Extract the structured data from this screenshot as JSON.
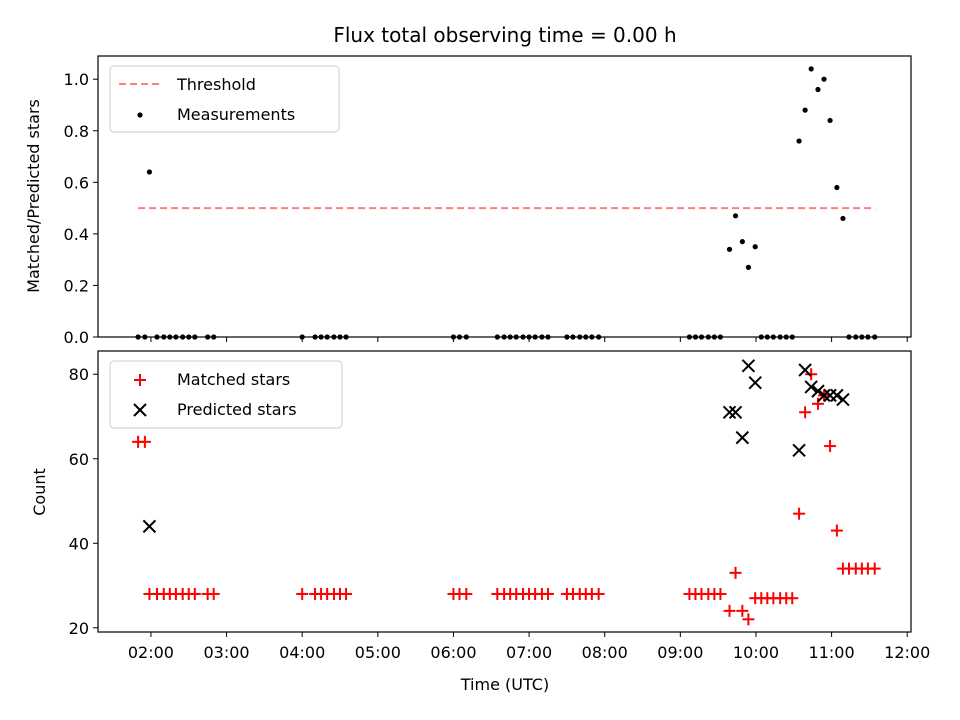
{
  "chart_data": {
    "title": "Flux total observing time = 0.00 h",
    "xlabel": "Time (UTC)",
    "x_unit": "hours UTC",
    "xlim": [
      1.3,
      12.05
    ],
    "xticks": [
      {
        "v": 2,
        "label": "02:00"
      },
      {
        "v": 3,
        "label": "03:00"
      },
      {
        "v": 4,
        "label": "04:00"
      },
      {
        "v": 5,
        "label": "05:00"
      },
      {
        "v": 6,
        "label": "06:00"
      },
      {
        "v": 7,
        "label": "07:00"
      },
      {
        "v": 8,
        "label": "08:00"
      },
      {
        "v": 9,
        "label": "09:00"
      },
      {
        "v": 10,
        "label": "10:00"
      },
      {
        "v": 11,
        "label": "11:00"
      },
      {
        "v": 12,
        "label": "12:00"
      }
    ],
    "top": {
      "type": "scatter",
      "ylabel": "Matched/Predicted stars",
      "ylim": [
        0,
        1.09
      ],
      "yticks": [
        {
          "v": 0,
          "label": "0.0"
        },
        {
          "v": 0.2,
          "label": "0.2"
        },
        {
          "v": 0.4,
          "label": "0.4"
        },
        {
          "v": 0.6,
          "label": "0.6"
        },
        {
          "v": 0.8,
          "label": "0.8"
        },
        {
          "v": 1.0,
          "label": "1.0"
        }
      ],
      "threshold": {
        "name": "Threshold",
        "y": 0.5,
        "x_start": 1.83,
        "x_end": 11.58,
        "color": "#ff7f7f"
      },
      "measurements": {
        "name": "Measurements",
        "color": "#000000",
        "points": [
          [
            1.83,
            0
          ],
          [
            1.92,
            0
          ],
          [
            1.98,
            0.64
          ],
          [
            2.08,
            0
          ],
          [
            2.17,
            0
          ],
          [
            2.25,
            0
          ],
          [
            2.33,
            0
          ],
          [
            2.42,
            0
          ],
          [
            2.5,
            0
          ],
          [
            2.58,
            0
          ],
          [
            2.75,
            0
          ],
          [
            2.83,
            0
          ],
          [
            4.0,
            0
          ],
          [
            4.17,
            0
          ],
          [
            4.25,
            0
          ],
          [
            4.33,
            0
          ],
          [
            4.42,
            0
          ],
          [
            4.5,
            0
          ],
          [
            4.58,
            0
          ],
          [
            6.0,
            0
          ],
          [
            6.08,
            0
          ],
          [
            6.17,
            0
          ],
          [
            6.58,
            0
          ],
          [
            6.67,
            0
          ],
          [
            6.75,
            0
          ],
          [
            6.83,
            0
          ],
          [
            6.92,
            0
          ],
          [
            7.0,
            0
          ],
          [
            7.08,
            0
          ],
          [
            7.17,
            0
          ],
          [
            7.25,
            0
          ],
          [
            7.5,
            0
          ],
          [
            7.58,
            0
          ],
          [
            7.67,
            0
          ],
          [
            7.75,
            0
          ],
          [
            7.83,
            0
          ],
          [
            7.92,
            0
          ],
          [
            9.12,
            0
          ],
          [
            9.2,
            0
          ],
          [
            9.28,
            0
          ],
          [
            9.37,
            0
          ],
          [
            9.45,
            0
          ],
          [
            9.53,
            0
          ],
          [
            9.65,
            0.34
          ],
          [
            9.73,
            0.47
          ],
          [
            9.82,
            0.37
          ],
          [
            9.9,
            0.27
          ],
          [
            9.99,
            0.35
          ],
          [
            10.07,
            0
          ],
          [
            10.15,
            0
          ],
          [
            10.23,
            0
          ],
          [
            10.32,
            0
          ],
          [
            10.4,
            0
          ],
          [
            10.48,
            0
          ],
          [
            10.57,
            0.76
          ],
          [
            10.65,
            0.88
          ],
          [
            10.73,
            1.04
          ],
          [
            10.82,
            0.96
          ],
          [
            10.9,
            1.0
          ],
          [
            10.98,
            0.84
          ],
          [
            11.07,
            0.58
          ],
          [
            11.15,
            0.46
          ],
          [
            11.23,
            0
          ],
          [
            11.32,
            0
          ],
          [
            11.4,
            0
          ],
          [
            11.48,
            0
          ],
          [
            11.57,
            0
          ]
        ]
      },
      "legend": {
        "position": "upper-left"
      }
    },
    "bottom": {
      "type": "scatter",
      "ylabel": "Count",
      "ylim": [
        19,
        85.5
      ],
      "yticks": [
        {
          "v": 20,
          "label": "20"
        },
        {
          "v": 40,
          "label": "40"
        },
        {
          "v": 60,
          "label": "60"
        },
        {
          "v": 80,
          "label": "80"
        }
      ],
      "matched": {
        "name": "Matched stars",
        "color": "#ff0000",
        "points": [
          [
            1.83,
            64
          ],
          [
            1.92,
            64
          ],
          [
            1.98,
            28
          ],
          [
            2.08,
            28
          ],
          [
            2.17,
            28
          ],
          [
            2.25,
            28
          ],
          [
            2.33,
            28
          ],
          [
            2.42,
            28
          ],
          [
            2.5,
            28
          ],
          [
            2.58,
            28
          ],
          [
            2.75,
            28
          ],
          [
            2.83,
            28
          ],
          [
            4.0,
            28
          ],
          [
            4.17,
            28
          ],
          [
            4.25,
            28
          ],
          [
            4.33,
            28
          ],
          [
            4.42,
            28
          ],
          [
            4.5,
            28
          ],
          [
            4.58,
            28
          ],
          [
            6.0,
            28
          ],
          [
            6.08,
            28
          ],
          [
            6.17,
            28
          ],
          [
            6.58,
            28
          ],
          [
            6.67,
            28
          ],
          [
            6.75,
            28
          ],
          [
            6.83,
            28
          ],
          [
            6.92,
            28
          ],
          [
            7.0,
            28
          ],
          [
            7.08,
            28
          ],
          [
            7.17,
            28
          ],
          [
            7.25,
            28
          ],
          [
            7.5,
            28
          ],
          [
            7.58,
            28
          ],
          [
            7.67,
            28
          ],
          [
            7.75,
            28
          ],
          [
            7.83,
            28
          ],
          [
            7.92,
            28
          ],
          [
            9.12,
            28
          ],
          [
            9.2,
            28
          ],
          [
            9.28,
            28
          ],
          [
            9.37,
            28
          ],
          [
            9.45,
            28
          ],
          [
            9.53,
            28
          ],
          [
            9.65,
            24
          ],
          [
            9.73,
            33
          ],
          [
            9.82,
            24
          ],
          [
            9.9,
            22
          ],
          [
            9.99,
            27
          ],
          [
            10.07,
            27
          ],
          [
            10.15,
            27
          ],
          [
            10.23,
            27
          ],
          [
            10.32,
            27
          ],
          [
            10.4,
            27
          ],
          [
            10.48,
            27
          ],
          [
            10.57,
            47
          ],
          [
            10.65,
            71
          ],
          [
            10.73,
            80
          ],
          [
            10.82,
            73
          ],
          [
            10.9,
            75
          ],
          [
            10.98,
            63
          ],
          [
            11.07,
            43
          ],
          [
            11.15,
            34
          ],
          [
            11.23,
            34
          ],
          [
            11.32,
            34
          ],
          [
            11.4,
            34
          ],
          [
            11.48,
            34
          ],
          [
            11.57,
            34
          ]
        ]
      },
      "predicted": {
        "name": "Predicted stars",
        "color": "#000000",
        "points": [
          [
            1.98,
            44
          ],
          [
            9.65,
            71
          ],
          [
            9.73,
            71
          ],
          [
            9.82,
            65
          ],
          [
            9.9,
            82
          ],
          [
            9.99,
            78
          ],
          [
            10.57,
            62
          ],
          [
            10.65,
            81
          ],
          [
            10.73,
            77
          ],
          [
            10.82,
            76
          ],
          [
            10.9,
            75
          ],
          [
            10.98,
            75
          ],
          [
            11.07,
            75
          ],
          [
            11.15,
            74
          ]
        ]
      },
      "legend": {
        "position": "upper-left"
      }
    }
  }
}
